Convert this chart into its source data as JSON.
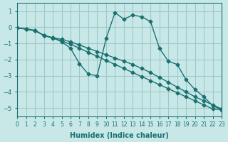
{
  "xlabel": "Humidex (Indice chaleur)",
  "ylabel": "",
  "background_color": "#c8e8e8",
  "grid_color": "#a0c8c8",
  "line_color": "#1a7070",
  "xlim": [
    0,
    23
  ],
  "ylim": [
    -5.5,
    1.5
  ],
  "yticks": [
    1,
    0,
    -1,
    -2,
    -3,
    -4,
    -5
  ],
  "xticks": [
    0,
    1,
    2,
    3,
    4,
    5,
    6,
    7,
    8,
    9,
    10,
    11,
    12,
    13,
    14,
    15,
    16,
    17,
    18,
    19,
    20,
    21,
    22,
    23
  ],
  "series": [
    [
      0,
      -0.05,
      1,
      -0.1,
      2,
      -0.2,
      3,
      -0.5,
      4,
      -0.65,
      5,
      -0.75,
      6,
      -0.9,
      7,
      -1.1,
      8,
      -1.3,
      9,
      -1.5,
      10,
      -1.7,
      11,
      -1.9,
      12,
      -2.1,
      13,
      -2.3,
      14,
      -2.55,
      15,
      -2.8,
      16,
      -3.1,
      17,
      -3.4,
      18,
      -3.7,
      19,
      -4.0,
      20,
      -4.3,
      21,
      -4.55,
      22,
      -4.8,
      23,
      -5.05
    ],
    [
      0,
      -0.05,
      1,
      -0.12,
      2,
      -0.22,
      3,
      -0.5,
      4,
      -0.65,
      5,
      -0.9,
      6,
      -1.3,
      7,
      -2.25,
      8,
      -2.9,
      9,
      -3.0,
      10,
      -0.7,
      11,
      0.9,
      12,
      0.5,
      13,
      0.75,
      14,
      0.65,
      15,
      0.35,
      16,
      -1.3,
      17,
      -2.1,
      18,
      -2.3,
      19,
      -3.25,
      20,
      -3.85,
      21,
      -4.3,
      22,
      -4.85,
      23,
      -5.1
    ],
    [
      0,
      -0.05,
      1,
      -0.1,
      2,
      -0.2,
      3,
      -0.52,
      4,
      -0.67,
      5,
      -0.85,
      6,
      -1.05,
      7,
      -1.3,
      8,
      -1.55,
      9,
      -1.8,
      10,
      -2.05,
      11,
      -2.3,
      12,
      -2.55,
      13,
      -2.8,
      14,
      -3.05,
      15,
      -3.3,
      16,
      -3.55,
      17,
      -3.8,
      18,
      -4.05,
      19,
      -4.3,
      20,
      -4.55,
      21,
      -4.8,
      22,
      -5.05,
      23,
      -5.1
    ]
  ]
}
